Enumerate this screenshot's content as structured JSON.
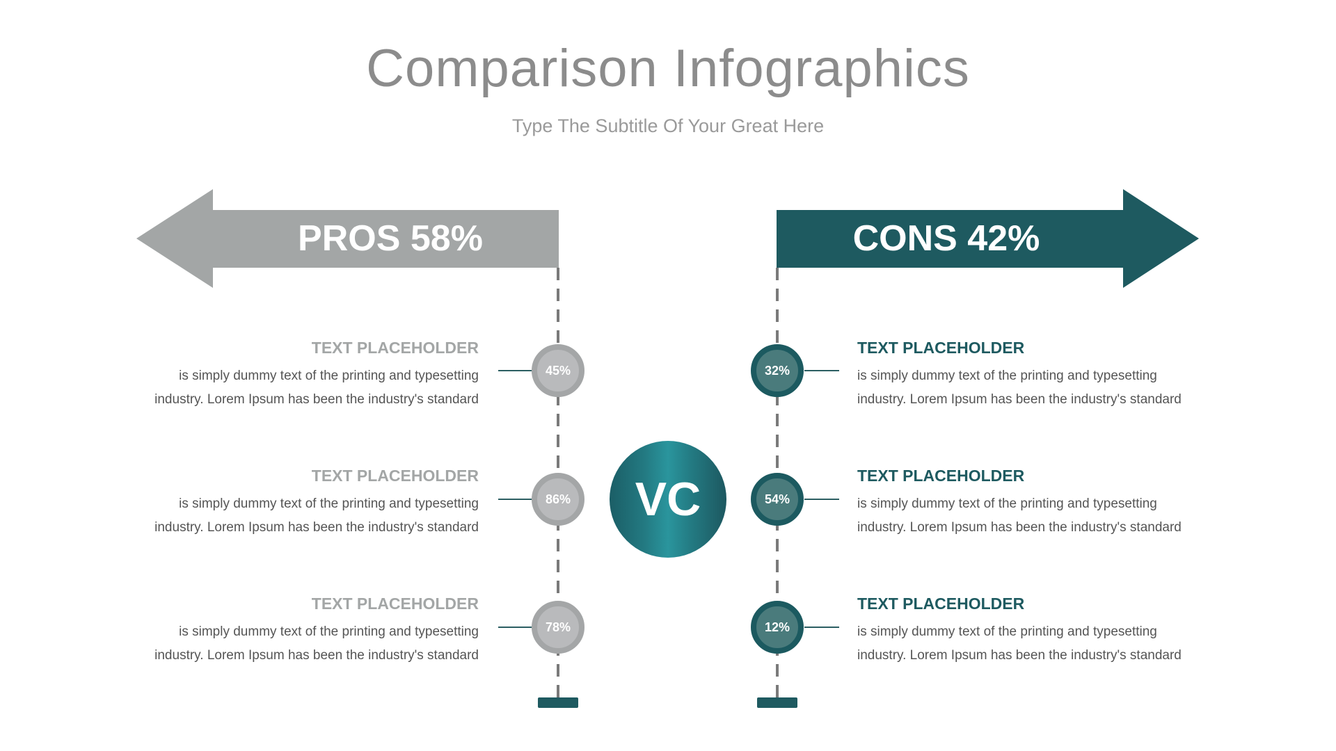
{
  "title": "Comparison Infographics",
  "subtitle": "Type The Subtitle Of Your Great Here",
  "colors": {
    "pros": "#a3a6a6",
    "cons": "#1e5a60"
  },
  "pros": {
    "label": "PROS 58%",
    "items": [
      {
        "value": "45%",
        "heading": "TEXT PLACEHOLDER",
        "line1": "is simply dummy text of the printing and typesetting",
        "line2": "industry. Lorem Ipsum has been the industry's standard"
      },
      {
        "value": "86%",
        "heading": "TEXT PLACEHOLDER",
        "line1": "is simply dummy text of the printing and typesetting",
        "line2": "industry. Lorem Ipsum has been the industry's standard"
      },
      {
        "value": "78%",
        "heading": "TEXT PLACEHOLDER",
        "line1": "is simply dummy text of the printing and typesetting",
        "line2": "industry. Lorem Ipsum has been the industry's standard"
      }
    ]
  },
  "cons": {
    "label": "CONS 42%",
    "items": [
      {
        "value": "32%",
        "heading": "TEXT PLACEHOLDER",
        "line1": "is simply dummy text of the printing and typesetting",
        "line2": "industry. Lorem Ipsum has been the industry's standard"
      },
      {
        "value": "54%",
        "heading": "TEXT PLACEHOLDER",
        "line1": "is simply dummy text of the printing and typesetting",
        "line2": "industry. Lorem Ipsum has been the industry's standard"
      },
      {
        "value": "12%",
        "heading": "TEXT PLACEHOLDER",
        "line1": "is simply dummy text of the printing and typesetting",
        "line2": "industry. Lorem Ipsum has been the industry's standard"
      }
    ]
  },
  "center": "VC"
}
